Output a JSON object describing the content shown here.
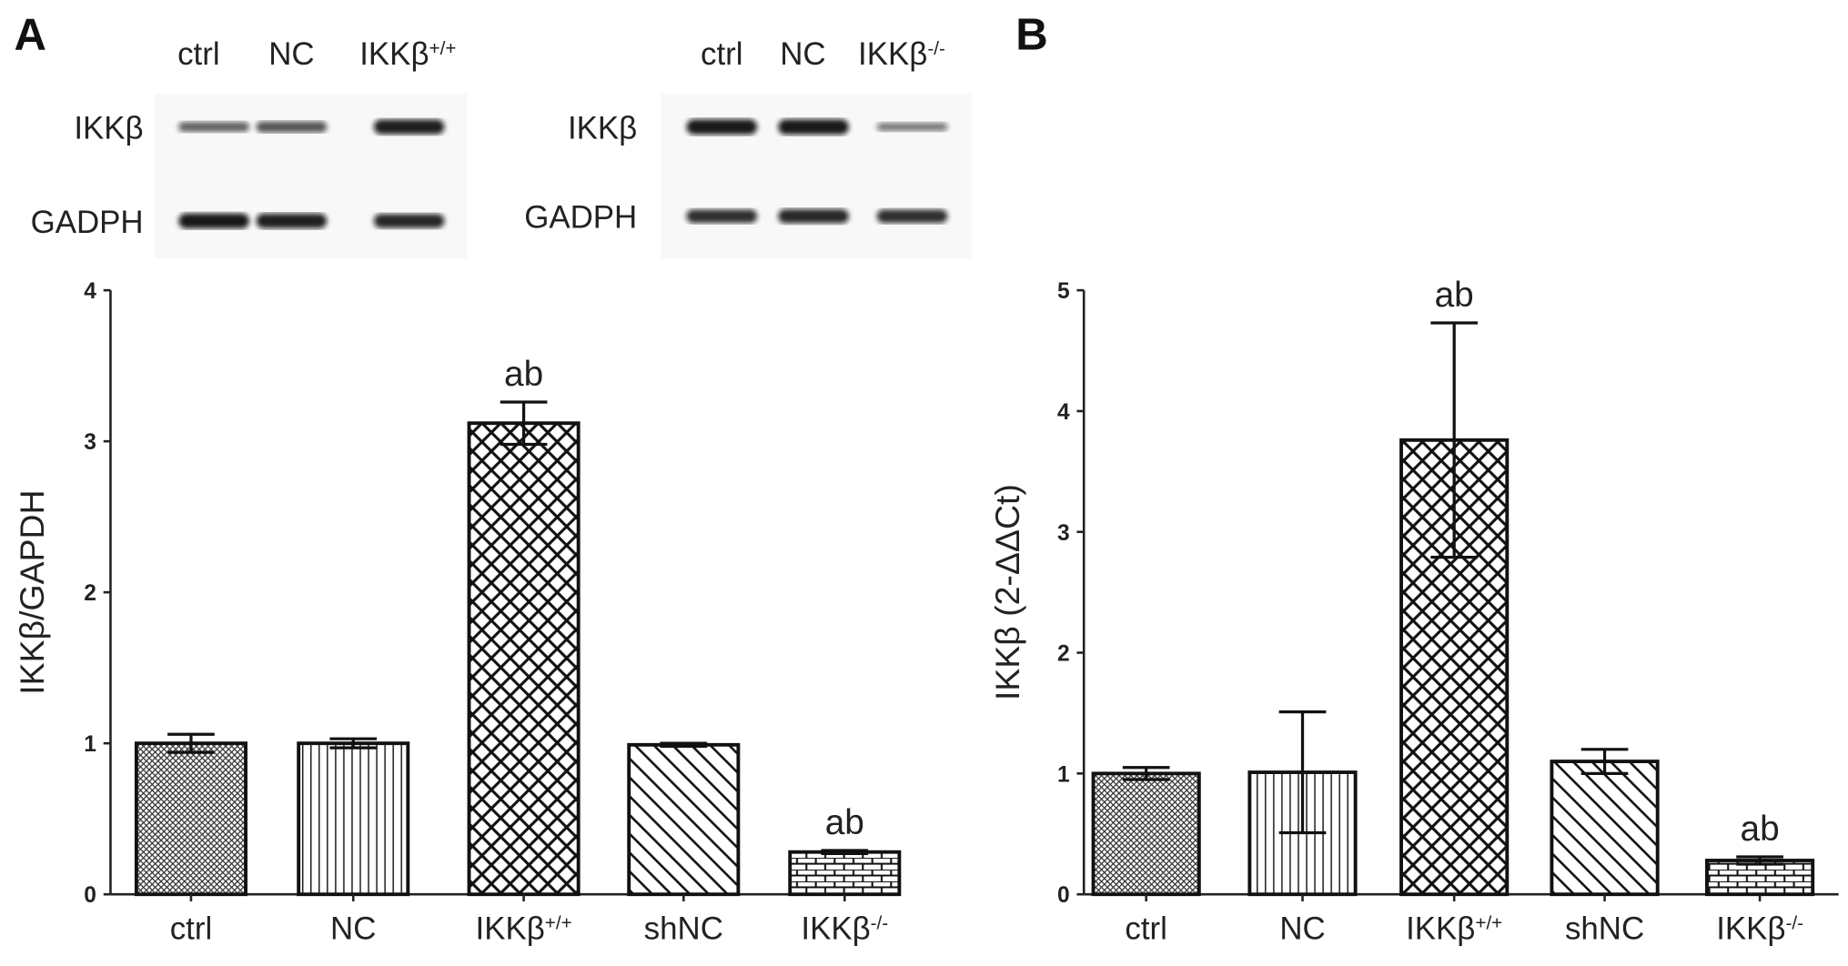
{
  "panels": {
    "a": "A",
    "b": "B"
  },
  "blots": [
    {
      "lanes": [
        {
          "base": "ctrl",
          "sup": ""
        },
        {
          "base": "NC",
          "sup": ""
        },
        {
          "base": "IKKβ",
          "sup": "+/+"
        }
      ],
      "rows": [
        "IKKβ",
        "GADPH"
      ],
      "intensity": {
        "IKKβ": [
          0.5,
          0.6,
          0.95
        ],
        "GADPH": [
          1,
          0.95,
          0.9
        ]
      }
    },
    {
      "lanes": [
        {
          "base": "ctrl",
          "sup": ""
        },
        {
          "base": "NC",
          "sup": ""
        },
        {
          "base": "IKKβ",
          "sup": "-/-"
        }
      ],
      "rows": [
        "IKKβ",
        "GADPH"
      ],
      "intensity": {
        "IKKβ": [
          1,
          1,
          0.35
        ],
        "GADPH": [
          0.85,
          0.9,
          0.85
        ]
      }
    }
  ],
  "chart_data": [
    {
      "type": "bar",
      "title": "",
      "xlabel": "",
      "ylabel": "IKKβ/GAPDH",
      "ylim": [
        0,
        4
      ],
      "yticks": [
        "0",
        "1",
        "2",
        "3",
        "4"
      ],
      "categories": [
        {
          "base": "ctrl",
          "sup": ""
        },
        {
          "base": "NC",
          "sup": ""
        },
        {
          "base": "IKKβ",
          "sup": "+/+"
        },
        {
          "base": "shNC",
          "sup": ""
        },
        {
          "base": "IKKβ",
          "sup": "-/-"
        }
      ],
      "values": [
        1.0,
        1.0,
        3.12,
        0.99,
        0.28
      ],
      "errors": [
        0.06,
        0.03,
        0.14,
        0.01,
        0.01
      ],
      "annotations": [
        "",
        "",
        "ab",
        "",
        "ab"
      ],
      "patterns": [
        "dots",
        "vertical",
        "diamond",
        "diagonal",
        "brick"
      ]
    },
    {
      "type": "bar",
      "title": "",
      "xlabel": "",
      "ylabel": "IKKβ (2-ΔΔCt)",
      "ylim": [
        0,
        5
      ],
      "yticks": [
        "0",
        "1",
        "2",
        "3",
        "4",
        "5"
      ],
      "categories": [
        {
          "base": "ctrl",
          "sup": ""
        },
        {
          "base": "NC",
          "sup": ""
        },
        {
          "base": "IKKβ",
          "sup": "+/+"
        },
        {
          "base": "shNC",
          "sup": ""
        },
        {
          "base": "IKKβ",
          "sup": "-/-"
        }
      ],
      "values": [
        1.0,
        1.01,
        3.76,
        1.1,
        0.28
      ],
      "errors": [
        0.05,
        0.5,
        0.97,
        0.1,
        0.03
      ],
      "annotations": [
        "",
        "",
        "ab",
        "",
        "ab"
      ],
      "patterns": [
        "dots",
        "vertical",
        "diamond",
        "diagonal",
        "brick"
      ]
    }
  ]
}
